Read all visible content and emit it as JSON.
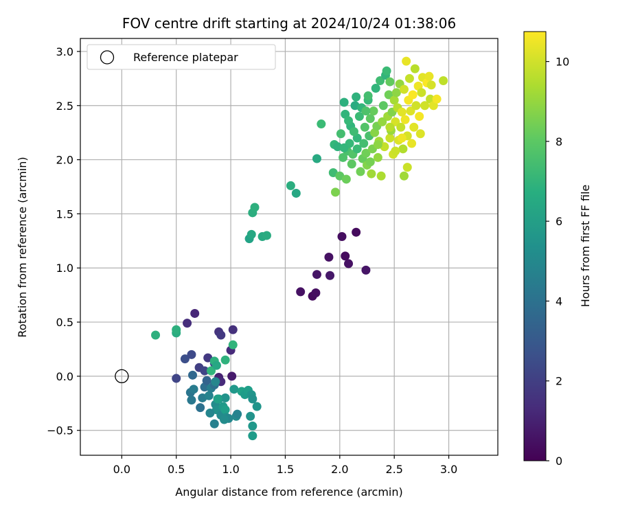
{
  "chart_data": {
    "type": "scatter",
    "title": "FOV centre drift starting at 2024/10/24 01:38:06",
    "xlabel": "Angular distance from reference (arcmin)",
    "ylabel": "Rotation from reference (arcmin)",
    "colorbar_label": "Hours from first FF file",
    "xlim": [
      -0.38,
      3.45
    ],
    "ylim": [
      -0.73,
      3.12
    ],
    "x_ticks": [
      0.0,
      0.5,
      1.0,
      1.5,
      2.0,
      2.5,
      3.0
    ],
    "x_tick_labels": [
      "0.0",
      "0.5",
      "1.0",
      "1.5",
      "2.0",
      "2.5",
      "3.0"
    ],
    "y_ticks": [
      -0.5,
      0.0,
      0.5,
      1.0,
      1.5,
      2.0,
      2.5,
      3.0
    ],
    "y_tick_labels": [
      "−0.5",
      "0.0",
      "0.5",
      "1.0",
      "1.5",
      "2.0",
      "2.5",
      "3.0"
    ],
    "colorbar_range": [
      0,
      10.75
    ],
    "colorbar_ticks": [
      0,
      2,
      4,
      6,
      8,
      10
    ],
    "colorbar_tick_labels": [
      "0",
      "2",
      "4",
      "6",
      "8",
      "10"
    ],
    "colormap": "viridis",
    "grid": true,
    "legend": {
      "placement": "top-left",
      "entries": [
        "Reference platepar"
      ]
    },
    "reference_point": {
      "x": 0.0,
      "y": 0.0
    },
    "points": [
      [
        0.5,
        -0.02,
        2.2
      ],
      [
        0.58,
        0.16,
        2.6
      ],
      [
        0.64,
        0.2,
        2.4
      ],
      [
        0.6,
        0.49,
        1.4
      ],
      [
        0.67,
        0.58,
        1.2
      ],
      [
        0.71,
        0.08,
        2.0
      ],
      [
        0.76,
        0.05,
        2.2
      ],
      [
        0.79,
        0.17,
        1.8
      ],
      [
        0.85,
        0.12,
        2.5
      ],
      [
        0.89,
        0.41,
        1.6
      ],
      [
        0.91,
        0.38,
        1.8
      ],
      [
        1.02,
        0.43,
        1.5
      ],
      [
        1.0,
        0.24,
        1.3
      ],
      [
        0.89,
        -0.01,
        1.0
      ],
      [
        1.01,
        0.0,
        0.8
      ],
      [
        0.91,
        -0.05,
        1.3
      ],
      [
        0.63,
        -0.15,
        4.2
      ],
      [
        0.66,
        -0.12,
        4.5
      ],
      [
        0.65,
        0.01,
        3.6
      ],
      [
        0.64,
        -0.22,
        4.3
      ],
      [
        0.72,
        -0.29,
        4.0
      ],
      [
        0.74,
        -0.2,
        4.5
      ],
      [
        0.76,
        -0.1,
        3.9
      ],
      [
        0.78,
        -0.04,
        3.4
      ],
      [
        0.8,
        -0.18,
        4.8
      ],
      [
        0.82,
        -0.11,
        4.6
      ],
      [
        0.85,
        -0.08,
        4.0
      ],
      [
        0.86,
        -0.26,
        5.2
      ],
      [
        0.87,
        -0.31,
        5.4
      ],
      [
        0.89,
        -0.21,
        5.6
      ],
      [
        0.91,
        -0.36,
        5.1
      ],
      [
        0.93,
        -0.28,
        5.8
      ],
      [
        0.95,
        -0.31,
        6.0
      ],
      [
        0.96,
        -0.38,
        5.3
      ],
      [
        0.85,
        -0.44,
        4.7
      ],
      [
        0.81,
        -0.34,
        4.9
      ],
      [
        1.03,
        -0.12,
        5.7
      ],
      [
        1.05,
        -0.37,
        5.2
      ],
      [
        1.06,
        -0.35,
        4.8
      ],
      [
        1.1,
        -0.14,
        6.1
      ],
      [
        1.13,
        -0.17,
        5.9
      ],
      [
        1.16,
        -0.13,
        6.0
      ],
      [
        1.18,
        -0.37,
        5.5
      ],
      [
        1.19,
        -0.17,
        5.6
      ],
      [
        1.2,
        -0.21,
        5.4
      ],
      [
        1.2,
        -0.46,
        5.7
      ],
      [
        1.2,
        -0.55,
        5.9
      ],
      [
        1.24,
        -0.28,
        5.6
      ],
      [
        0.98,
        -0.39,
        5.0
      ],
      [
        0.94,
        -0.4,
        5.2
      ],
      [
        0.82,
        0.05,
        7.0
      ],
      [
        0.85,
        0.14,
        6.8
      ],
      [
        0.87,
        0.1,
        6.4
      ],
      [
        0.86,
        -0.05,
        5.0
      ],
      [
        0.95,
        0.15,
        6.9
      ],
      [
        1.02,
        0.29,
        7.0
      ],
      [
        0.95,
        -0.2,
        5.5
      ],
      [
        0.88,
        -0.21,
        6.1
      ],
      [
        0.31,
        0.38,
        6.8
      ],
      [
        0.5,
        0.4,
        6.6
      ],
      [
        0.5,
        0.43,
        6.8
      ],
      [
        1.17,
        1.27,
        6.2
      ],
      [
        1.19,
        1.31,
        6.4
      ],
      [
        1.29,
        1.29,
        6.5
      ],
      [
        1.33,
        1.3,
        6.6
      ],
      [
        1.2,
        1.51,
        6.7
      ],
      [
        1.22,
        1.56,
        6.8
      ],
      [
        1.55,
        1.76,
        6.7
      ],
      [
        1.6,
        1.69,
        6.4
      ],
      [
        1.79,
        2.01,
        6.5
      ],
      [
        1.83,
        2.33,
        7.3
      ],
      [
        1.64,
        0.78,
        0.5
      ],
      [
        1.75,
        0.74,
        0.3
      ],
      [
        1.78,
        0.77,
        0.4
      ],
      [
        1.79,
        0.94,
        0.6
      ],
      [
        1.9,
        1.1,
        0.5
      ],
      [
        1.91,
        0.93,
        0.7
      ],
      [
        2.02,
        1.29,
        0.4
      ],
      [
        2.05,
        1.11,
        0.3
      ],
      [
        2.08,
        1.04,
        0.5
      ],
      [
        2.15,
        1.33,
        0.3
      ],
      [
        2.24,
        0.98,
        0.6
      ],
      [
        1.95,
        2.14,
        7.1
      ],
      [
        1.98,
        2.12,
        6.9
      ],
      [
        1.94,
        1.88,
        7.4
      ],
      [
        1.96,
        1.7,
        8.6
      ],
      [
        2.0,
        1.85,
        8.0
      ],
      [
        2.04,
        2.53,
        6.8
      ],
      [
        2.05,
        2.42,
        7.0
      ],
      [
        2.07,
        2.08,
        7.6
      ],
      [
        2.09,
        2.15,
        7.2
      ],
      [
        2.1,
        2.31,
        7.0
      ],
      [
        2.12,
        2.05,
        7.8
      ],
      [
        2.14,
        2.5,
        6.6
      ],
      [
        2.15,
        2.58,
        6.9
      ],
      [
        2.16,
        2.2,
        7.1
      ],
      [
        2.18,
        2.4,
        7.3
      ],
      [
        2.2,
        2.48,
        7.0
      ],
      [
        2.21,
        2.01,
        8.2
      ],
      [
        2.22,
        2.15,
        7.5
      ],
      [
        2.23,
        2.3,
        7.8
      ],
      [
        2.24,
        2.06,
        8.4
      ],
      [
        2.25,
        1.95,
        8.7
      ],
      [
        2.26,
        2.55,
        7.2
      ],
      [
        2.27,
        2.22,
        7.6
      ],
      [
        2.28,
        2.38,
        8.0
      ],
      [
        2.3,
        2.1,
        8.6
      ],
      [
        2.31,
        2.45,
        8.2
      ],
      [
        2.32,
        2.25,
        8.8
      ],
      [
        2.33,
        2.66,
        7.0
      ],
      [
        2.34,
        2.31,
        8.5
      ],
      [
        2.35,
        2.02,
        9.0
      ],
      [
        2.36,
        2.17,
        9.3
      ],
      [
        2.37,
        2.73,
        7.4
      ],
      [
        2.38,
        1.85,
        9.4
      ],
      [
        2.4,
        2.5,
        8.0
      ],
      [
        2.41,
        2.12,
        9.8
      ],
      [
        2.42,
        2.78,
        7.0
      ],
      [
        2.43,
        2.82,
        7.3
      ],
      [
        2.44,
        2.4,
        9.2
      ],
      [
        2.45,
        2.6,
        8.4
      ],
      [
        2.46,
        2.2,
        9.9
      ],
      [
        2.47,
        2.27,
        9.1
      ],
      [
        2.48,
        2.44,
        8.7
      ],
      [
        2.49,
        2.05,
        10.0
      ],
      [
        2.5,
        2.55,
        9.3
      ],
      [
        2.51,
        2.35,
        10.1
      ],
      [
        2.52,
        2.62,
        8.9
      ],
      [
        2.53,
        2.48,
        9.6
      ],
      [
        2.54,
        2.18,
        10.2
      ],
      [
        2.55,
        2.7,
        9.0
      ],
      [
        2.56,
        2.3,
        9.8
      ],
      [
        2.57,
        2.44,
        10.3
      ],
      [
        2.58,
        2.1,
        9.5
      ],
      [
        2.59,
        2.65,
        10.0
      ],
      [
        2.6,
        2.37,
        10.5
      ],
      [
        2.61,
        2.91,
        10.4
      ],
      [
        2.62,
        2.22,
        10.1
      ],
      [
        2.63,
        2.55,
        10.6
      ],
      [
        2.64,
        2.75,
        9.8
      ],
      [
        2.65,
        2.45,
        10.2
      ],
      [
        2.66,
        2.15,
        10.4
      ],
      [
        2.67,
        2.6,
        10.7
      ],
      [
        2.68,
        2.3,
        10.3
      ],
      [
        2.69,
        2.84,
        9.6
      ],
      [
        2.7,
        2.5,
        10.0
      ],
      [
        2.72,
        2.68,
        10.5
      ],
      [
        2.73,
        2.4,
        10.6
      ],
      [
        2.74,
        2.24,
        10.2
      ],
      [
        2.75,
        2.62,
        9.9
      ],
      [
        2.76,
        2.76,
        10.3
      ],
      [
        2.78,
        2.5,
        10.0
      ],
      [
        2.8,
        2.71,
        10.7
      ],
      [
        2.82,
        2.77,
        10.4
      ],
      [
        2.83,
        2.56,
        9.8
      ],
      [
        2.84,
        2.69,
        10.1
      ],
      [
        2.86,
        2.5,
        10.3
      ],
      [
        2.89,
        2.56,
        10.6
      ],
      [
        2.95,
        2.73,
        9.7
      ],
      [
        2.62,
        1.93,
        9.9
      ],
      [
        2.59,
        1.85,
        9.2
      ],
      [
        2.46,
        2.72,
        8.1
      ],
      [
        2.16,
        2.1,
        7.3
      ],
      [
        2.06,
        1.82,
        8.3
      ],
      [
        2.03,
        2.02,
        7.7
      ],
      [
        2.11,
        1.96,
        8.0
      ],
      [
        2.19,
        1.89,
        8.4
      ],
      [
        2.28,
        1.98,
        8.5
      ],
      [
        2.24,
        2.45,
        7.7
      ],
      [
        2.26,
        2.59,
        7.5
      ],
      [
        2.35,
        2.14,
        8.9
      ],
      [
        2.39,
        2.35,
        9.0
      ],
      [
        2.46,
        2.3,
        9.6
      ],
      [
        2.51,
        2.08,
        9.9
      ],
      [
        2.57,
        2.2,
        10.5
      ],
      [
        2.29,
        1.87,
        9.2
      ],
      [
        2.13,
        2.26,
        7.4
      ],
      [
        2.08,
        2.36,
        7.2
      ],
      [
        2.01,
        2.24,
        7.5
      ],
      [
        2.04,
        2.11,
        7.1
      ]
    ]
  }
}
